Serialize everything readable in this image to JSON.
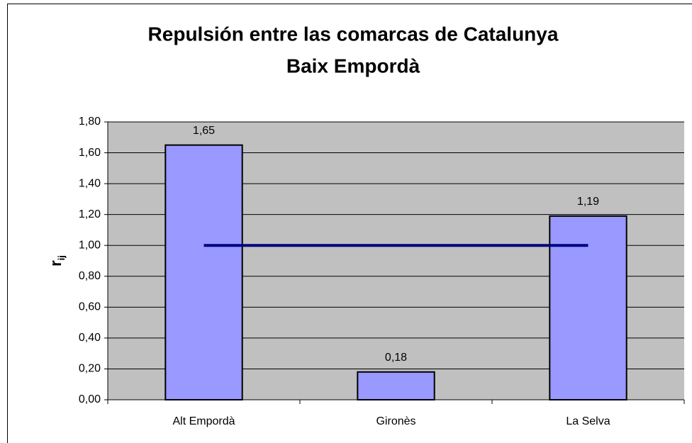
{
  "chart_data": {
    "type": "bar",
    "title": "Repulsión entre las comarcas de Catalunya",
    "subtitle": "Baix Empordà",
    "ylabel": "r",
    "ylabel_subscript": "ij",
    "categories": [
      "Alt Empordà",
      "Gironès",
      "La Selva"
    ],
    "values": [
      1.65,
      0.18,
      1.19
    ],
    "value_labels": [
      "1,65",
      "0,18",
      "1,19"
    ],
    "color": "#9999ff",
    "line": {
      "values": [
        1.0,
        1.0,
        1.0
      ],
      "color": "#000080"
    },
    "ylim": [
      0,
      1.8
    ],
    "yticks": [
      {
        "value": 0,
        "label": "0,00"
      },
      {
        "value": 0.2,
        "label": "0,20"
      },
      {
        "value": 0.4,
        "label": "0,40"
      },
      {
        "value": 0.6,
        "label": "0,60"
      },
      {
        "value": 0.8,
        "label": "0,80"
      },
      {
        "value": 1.0,
        "label": "1,00"
      },
      {
        "value": 1.2,
        "label": "1,20"
      },
      {
        "value": 1.4,
        "label": "1,40"
      },
      {
        "value": 1.6,
        "label": "1,60"
      },
      {
        "value": 1.8,
        "label": "1,80"
      }
    ],
    "grid": true,
    "plot_background": "#c0c0c0"
  }
}
